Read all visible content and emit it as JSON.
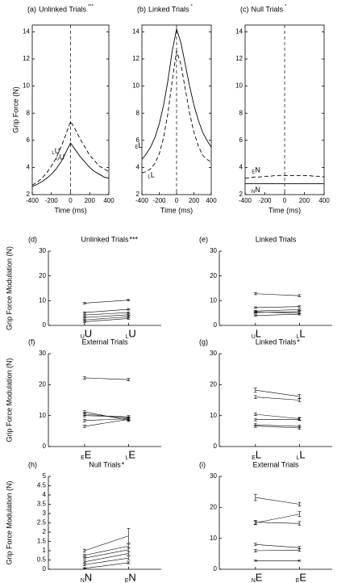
{
  "chart_data": [
    {
      "type": "line",
      "label": "(a)",
      "title": "Unlinked Trials",
      "stars": "***",
      "xlabel": "Time (ms)",
      "ylabel": "Grip Force (N)",
      "x": [
        -400,
        -350,
        -300,
        -250,
        -200,
        -150,
        -100,
        -50,
        0,
        50,
        100,
        150,
        200,
        250,
        300,
        350,
        400
      ],
      "xlim": [
        -400,
        400
      ],
      "xticks": [
        -400,
        -200,
        0,
        200,
        400
      ],
      "ylim": [
        2,
        14.5
      ],
      "yticks": [
        2,
        4,
        6,
        8,
        10,
        12,
        14
      ],
      "vline": 0,
      "series": [
        {
          "prefix": "U",
          "letter": "U",
          "linestyle": "solid",
          "values": [
            2.6,
            2.75,
            2.95,
            3.2,
            3.5,
            3.9,
            4.4,
            5.1,
            5.8,
            5.3,
            4.8,
            4.4,
            4.0,
            3.7,
            3.5,
            3.3,
            3.2
          ]
        },
        {
          "prefix": "L",
          "letter": "U",
          "linestyle": "dashed",
          "values": [
            2.7,
            2.9,
            3.2,
            3.6,
            4.1,
            4.7,
            5.5,
            6.4,
            7.4,
            6.8,
            6.1,
            5.5,
            4.9,
            4.5,
            4.1,
            3.9,
            3.7
          ]
        }
      ]
    },
    {
      "type": "line",
      "label": "(b)",
      "title": "Linked Trials",
      "stars": "*",
      "xlabel": "Time (ms)",
      "x": [
        -400,
        -350,
        -300,
        -250,
        -200,
        -150,
        -100,
        -50,
        0,
        50,
        100,
        150,
        200,
        250,
        300,
        350,
        400
      ],
      "xlim": [
        -400,
        400
      ],
      "xticks": [
        -400,
        -200,
        0,
        200,
        400
      ],
      "ylim": [
        2,
        14.5
      ],
      "yticks": [
        2,
        4,
        6,
        8,
        10,
        12,
        14
      ],
      "vline": 0,
      "series": [
        {
          "prefix": "E",
          "letter": "L",
          "linestyle": "solid",
          "values": [
            4.6,
            5.0,
            5.5,
            6.2,
            7.2,
            8.6,
            10.4,
            12.6,
            14.2,
            13.2,
            11.6,
            10.0,
            8.6,
            7.5,
            6.6,
            6.0,
            5.5
          ]
        },
        {
          "prefix": "L",
          "letter": "L",
          "linestyle": "dashed",
          "values": [
            3.6,
            3.7,
            3.9,
            4.3,
            5.0,
            6.2,
            8.0,
            10.4,
            12.6,
            11.6,
            9.8,
            8.0,
            6.6,
            5.6,
            4.9,
            4.6,
            4.4
          ]
        }
      ]
    },
    {
      "type": "line",
      "label": "(c)",
      "title": "Null Trials",
      "stars": "*",
      "xlabel": "Time (ms)",
      "x": [
        -400,
        -350,
        -300,
        -250,
        -200,
        -150,
        -100,
        -50,
        0,
        50,
        100,
        150,
        200,
        250,
        300,
        350,
        400
      ],
      "xlim": [
        -400,
        400
      ],
      "xticks": [
        -400,
        -200,
        0,
        200,
        400
      ],
      "ylim": [
        2,
        14.5
      ],
      "yticks": [
        2,
        4,
        6,
        8,
        10,
        12,
        14
      ],
      "vline": 0,
      "series": [
        {
          "prefix": "E",
          "letter": "N",
          "linestyle": "dashed",
          "values": [
            3.2,
            3.25,
            3.3,
            3.3,
            3.35,
            3.35,
            3.4,
            3.4,
            3.4,
            3.4,
            3.4,
            3.4,
            3.4,
            3.4,
            3.35,
            3.35,
            3.3
          ]
        },
        {
          "prefix": "N",
          "letter": "N",
          "linestyle": "solid",
          "values": [
            2.8,
            2.8,
            2.8,
            2.8,
            2.8,
            2.8,
            2.8,
            2.8,
            2.8,
            2.8,
            2.8,
            2.8,
            2.8,
            2.8,
            2.8,
            2.8,
            2.8
          ]
        }
      ]
    },
    {
      "type": "paired",
      "label": "(d)",
      "title": "Unlinked Trials",
      "stars": "***",
      "ylabel": "Grip Force Modulation (N)",
      "categories": [
        {
          "prefix": "U",
          "letter": "U"
        },
        {
          "prefix": "L",
          "letter": "U"
        }
      ],
      "ylim": [
        0,
        30
      ],
      "yticks": [
        0,
        10,
        20,
        30
      ],
      "series": [
        {
          "values": [
            9,
            10.2
          ],
          "errors": [
            0.3,
            0.3
          ]
        },
        {
          "values": [
            5.2,
            6.5
          ],
          "errors": [
            0.3,
            0.3
          ]
        },
        {
          "values": [
            4.2,
            5.2
          ],
          "errors": [
            0.3,
            0.3
          ]
        },
        {
          "values": [
            3.2,
            4.3
          ],
          "errors": [
            0.3,
            0.3
          ]
        },
        {
          "values": [
            2.2,
            3.5
          ],
          "errors": [
            0.3,
            0.3
          ]
        },
        {
          "values": [
            1.5,
            2.8
          ],
          "errors": [
            0.3,
            0.3
          ]
        }
      ]
    },
    {
      "type": "paired",
      "label": "(e)",
      "title": "Linked Trials",
      "stars": "",
      "categories": [
        {
          "prefix": "U",
          "letter": "L"
        },
        {
          "prefix": "L",
          "letter": "L"
        }
      ],
      "ylim": [
        0,
        30
      ],
      "yticks": [
        0,
        10,
        20,
        30
      ],
      "series": [
        {
          "values": [
            12.8,
            12
          ],
          "errors": [
            0.4,
            0.4
          ]
        },
        {
          "values": [
            7.2,
            7.6
          ],
          "errors": [
            0.3,
            0.3
          ]
        },
        {
          "values": [
            5.8,
            6.4
          ],
          "errors": [
            0.3,
            0.3
          ]
        },
        {
          "values": [
            5.2,
            5.6
          ],
          "errors": [
            0.3,
            0.3
          ]
        },
        {
          "values": [
            5.4,
            5
          ],
          "errors": [
            0.3,
            0.3
          ]
        },
        {
          "values": [
            4,
            4.5
          ],
          "errors": [
            0.3,
            0.3
          ]
        }
      ]
    },
    {
      "type": "paired",
      "label": "(f)",
      "title": "External Trials",
      "stars": "",
      "ylabel": "Grip Force Modulation (N)",
      "categories": [
        {
          "prefix": "E",
          "letter": "E"
        },
        {
          "prefix": "L",
          "letter": "E"
        }
      ],
      "ylim": [
        0,
        30
      ],
      "yticks": [
        0,
        10,
        20,
        30
      ],
      "series": [
        {
          "values": [
            22.2,
            21.6
          ],
          "errors": [
            0.4,
            0.4
          ]
        },
        {
          "values": [
            11.2,
            8.5
          ],
          "errors": [
            0.4,
            0.4
          ]
        },
        {
          "values": [
            10.5,
            9.2
          ],
          "errors": [
            0.4,
            0.4
          ]
        },
        {
          "values": [
            10,
            9.6
          ],
          "errors": [
            0.4,
            0.4
          ]
        },
        {
          "values": [
            8.4,
            9
          ],
          "errors": [
            0.4,
            0.4
          ]
        },
        {
          "values": [
            6.5,
            8.8
          ],
          "errors": [
            0.4,
            0.4
          ]
        }
      ]
    },
    {
      "type": "paired",
      "label": "(g)",
      "title": "Linked Trials",
      "stars": "*",
      "categories": [
        {
          "prefix": "E",
          "letter": "L"
        },
        {
          "prefix": "L",
          "letter": "L"
        }
      ],
      "ylim": [
        0,
        30
      ],
      "yticks": [
        0,
        10,
        20,
        30
      ],
      "series": [
        {
          "values": [
            18.2,
            16.2
          ],
          "errors": [
            0.7,
            0.6
          ]
        },
        {
          "values": [
            16,
            15
          ],
          "errors": [
            0.5,
            0.5
          ]
        },
        {
          "values": [
            10.4,
            9
          ],
          "errors": [
            0.4,
            0.4
          ]
        },
        {
          "values": [
            8.7,
            8.8
          ],
          "errors": [
            0.4,
            0.4
          ]
        },
        {
          "values": [
            7,
            6.5
          ],
          "errors": [
            0.4,
            0.4
          ]
        },
        {
          "values": [
            6.6,
            6
          ],
          "errors": [
            0.4,
            0.4
          ]
        }
      ]
    },
    {
      "type": "paired",
      "label": "(h)",
      "title": "Null Trials",
      "stars": "*",
      "ylabel": "Grip Force Modulation (N)",
      "categories": [
        {
          "prefix": "N",
          "letter": "N"
        },
        {
          "prefix": "E",
          "letter": "N"
        }
      ],
      "ylim": [
        0,
        5
      ],
      "yticks": [
        0,
        0.5,
        1,
        1.5,
        2,
        2.5,
        3,
        3.5,
        4,
        4.5,
        5
      ],
      "series": [
        {
          "values": [
            1.0,
            1.8
          ],
          "errors": [
            0.08,
            0.4
          ]
        },
        {
          "values": [
            0.75,
            1.25
          ],
          "errors": [
            0.05,
            0.1
          ]
        },
        {
          "values": [
            0.6,
            1.05
          ],
          "errors": [
            0.05,
            0.1
          ]
        },
        {
          "values": [
            0.4,
            0.85
          ],
          "errors": [
            0.05,
            0.1
          ]
        },
        {
          "values": [
            0.25,
            0.6
          ],
          "errors": [
            0.05,
            0.1
          ]
        },
        {
          "values": [
            0.05,
            0.35
          ],
          "errors": [
            0.03,
            0.05
          ]
        }
      ]
    },
    {
      "type": "paired",
      "label": "(i)",
      "title": "External Trials",
      "stars": "",
      "categories": [
        {
          "prefix": "N",
          "letter": "E"
        },
        {
          "prefix": "E",
          "letter": "E"
        }
      ],
      "ylim": [
        0,
        30
      ],
      "yticks": [
        0,
        10,
        20,
        30
      ],
      "series": [
        {
          "values": [
            23.2,
            21
          ],
          "errors": [
            1,
            0.6
          ]
        },
        {
          "values": [
            15,
            17.8
          ],
          "errors": [
            0.6,
            0.8
          ]
        },
        {
          "values": [
            15.2,
            14.8
          ],
          "errors": [
            0.6,
            0.6
          ]
        },
        {
          "values": [
            8,
            7
          ],
          "errors": [
            0.4,
            0.4
          ]
        },
        {
          "values": [
            6,
            6.2
          ],
          "errors": [
            0.4,
            0.4
          ]
        },
        {
          "values": [
            2.8,
            2.8
          ],
          "errors": [
            0.2,
            0.2
          ]
        }
      ]
    }
  ]
}
